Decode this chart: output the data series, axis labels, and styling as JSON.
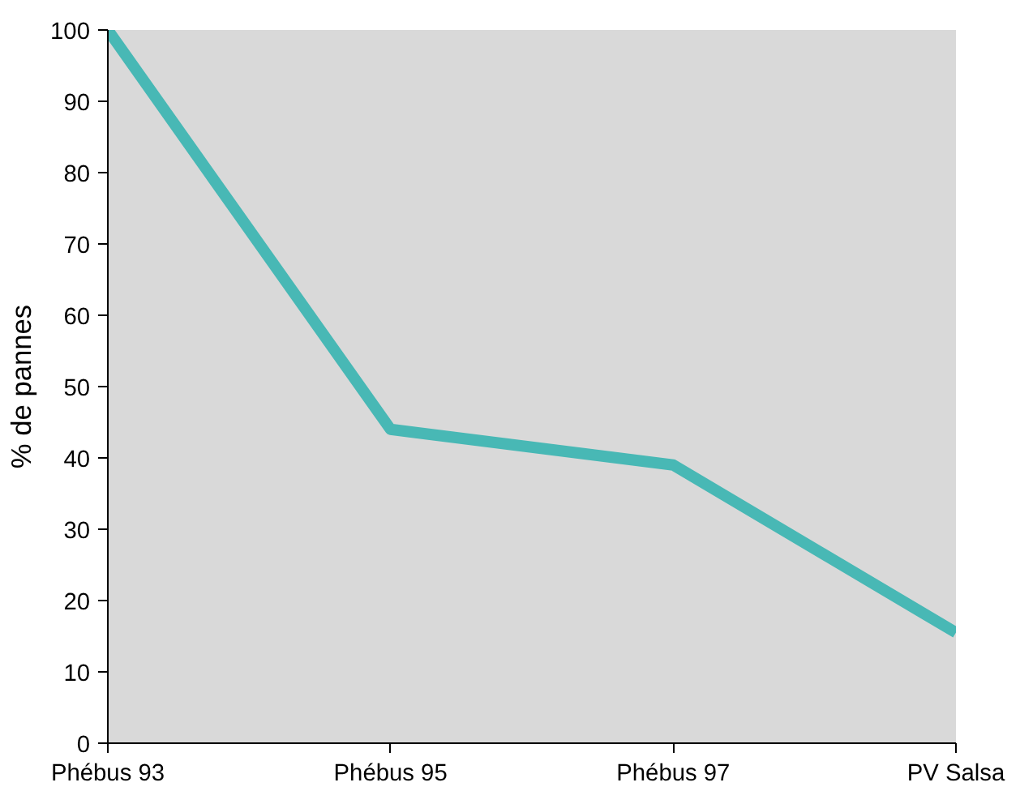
{
  "chart_data": {
    "type": "line",
    "ylabel": "% de pannes",
    "categories": [
      "Phébus 93",
      "Phébus 95",
      "Phébus 97",
      "PV Salsa"
    ],
    "series": [
      {
        "color": "#48b8b5",
        "values": [
          100,
          44,
          39,
          15.5
        ]
      }
    ],
    "ylim": [
      0,
      100
    ],
    "yticks": [
      0,
      10,
      20,
      30,
      40,
      50,
      60,
      70,
      80,
      90,
      100
    ],
    "grid": false,
    "marker": "none",
    "line_style": "solid"
  }
}
